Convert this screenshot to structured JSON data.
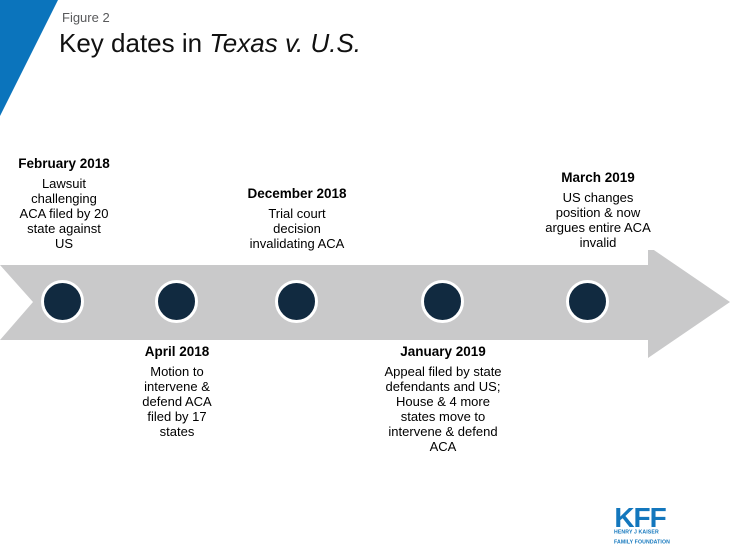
{
  "figure_label": "Figure 2",
  "title": {
    "prefix": "Key dates in ",
    "case_name": "Texas v. U.S."
  },
  "timeline": {
    "events": [
      {
        "date": "February 2018",
        "description": "Lawsuit\nchallenging\nACA filed by 20\nstate against\nUS",
        "position": "above"
      },
      {
        "date": "April 2018",
        "description": "Motion to\nintervene &\ndefend ACA\nfiled by 17\nstates",
        "position": "below"
      },
      {
        "date": "December 2018",
        "description": "Trial court\ndecision\ninvalidating ACA",
        "position": "above"
      },
      {
        "date": "January 2019",
        "description": "Appeal filed by state\ndefendants and US;\nHouse & 4 more\nstates move to\nintervene & defend\nACA",
        "position": "below"
      },
      {
        "date": "March 2019",
        "description": "US changes\nposition & now\nargues entire ACA\ninvalid",
        "position": "above"
      }
    ]
  },
  "logo": {
    "name": "KFF",
    "tagline_line1": "HENRY J KAISER",
    "tagline_line2": "FAMILY FOUNDATION"
  },
  "colors": {
    "accent_blue": "#0b74bc",
    "arrow_gray": "#c9c9ca",
    "dot_navy": "#112a40",
    "logo_blue": "#1377bd",
    "figure_label_gray": "#58595b"
  }
}
